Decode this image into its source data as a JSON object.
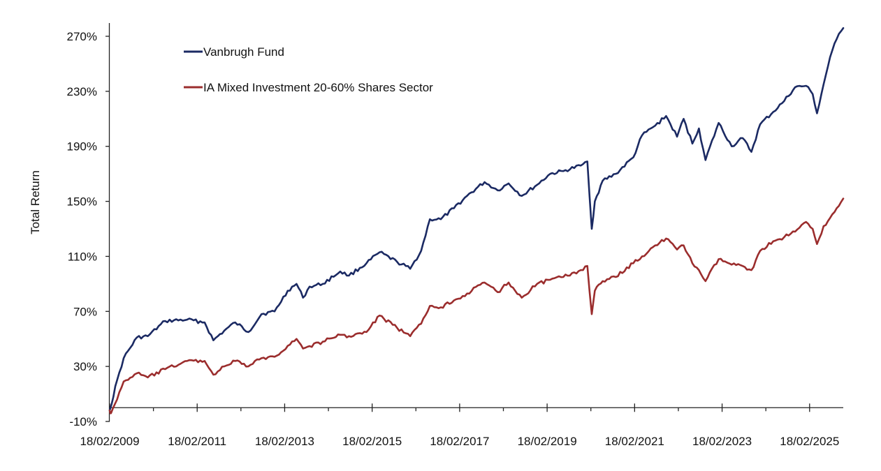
{
  "chart_data": {
    "type": "line",
    "title": "",
    "xlabel": "",
    "ylabel": "Total Return",
    "ylim": [
      -10,
      280
    ],
    "y_ticks": [
      -10,
      30,
      70,
      110,
      150,
      190,
      230,
      270
    ],
    "y_tick_labels": [
      "-10%",
      "30%",
      "70%",
      "110%",
      "150%",
      "190%",
      "230%",
      "270%"
    ],
    "x_range": [
      2009.13,
      2025.9
    ],
    "x_major_ticks": [
      2009.13,
      2011.13,
      2013.13,
      2015.13,
      2017.13,
      2019.13,
      2021.13,
      2023.13,
      2025.13
    ],
    "x_minor_ticks": [
      2010.13,
      2012.13,
      2014.13,
      2016.13,
      2018.13,
      2020.13,
      2022.13,
      2024.13
    ],
    "x_tick_labels": [
      "18/02/2009",
      "18/02/2011",
      "18/02/2013",
      "18/02/2015",
      "18/02/2017",
      "18/02/2019",
      "18/02/2021",
      "18/02/2023",
      "18/02/2025"
    ],
    "x_axis_crosses_at": 0,
    "grid": false,
    "legend_position": "top-left",
    "series": [
      {
        "name": "Vanbrugh Fund",
        "color": "#1b2a63",
        "x": [
          2009.13,
          2009.3,
          2009.45,
          2009.75,
          2010.0,
          2010.4,
          2010.9,
          2011.3,
          2011.5,
          2011.75,
          2012.0,
          2012.3,
          2012.6,
          2012.9,
          2013.2,
          2013.4,
          2013.55,
          2013.7,
          2014.0,
          2014.4,
          2014.6,
          2015.0,
          2015.3,
          2015.7,
          2016.0,
          2016.25,
          2016.45,
          2016.7,
          2017.0,
          2017.3,
          2017.7,
          2018.0,
          2018.25,
          2018.55,
          2018.9,
          2019.2,
          2019.5,
          2019.9,
          2020.05,
          2020.15,
          2020.22,
          2020.4,
          2020.7,
          2021.1,
          2021.3,
          2021.6,
          2021.85,
          2022.1,
          2022.25,
          2022.45,
          2022.6,
          2022.75,
          2023.05,
          2023.35,
          2023.6,
          2023.8,
          2024.0,
          2024.3,
          2024.55,
          2024.8,
          2025.05,
          2025.2,
          2025.3,
          2025.45,
          2025.6,
          2025.75,
          2025.9
        ],
        "values": [
          -2,
          20,
          36,
          51,
          52,
          63,
          64,
          62,
          49,
          56,
          62,
          55,
          68,
          70,
          85,
          90,
          80,
          88,
          90,
          99,
          96,
          105,
          113,
          106,
          101,
          114,
          137,
          137,
          145,
          154,
          164,
          158,
          163,
          154,
          162,
          170,
          172,
          176,
          179,
          130,
          150,
          165,
          170,
          182,
          198,
          205,
          212,
          197,
          210,
          192,
          203,
          180,
          207,
          190,
          196,
          186,
          206,
          215,
          223,
          233,
          234,
          228,
          214,
          235,
          255,
          268,
          276
        ]
      },
      {
        "name": "IA Mixed Investment 20-60% Shares Sector",
        "color": "#9b2d2d",
        "x": [
          2009.13,
          2009.16,
          2009.3,
          2009.45,
          2009.75,
          2010.0,
          2010.4,
          2010.9,
          2011.3,
          2011.5,
          2011.75,
          2012.0,
          2012.3,
          2012.6,
          2012.9,
          2013.2,
          2013.4,
          2013.55,
          2014.0,
          2014.4,
          2014.6,
          2015.0,
          2015.3,
          2015.7,
          2016.0,
          2016.25,
          2016.45,
          2016.7,
          2017.0,
          2017.3,
          2017.7,
          2018.0,
          2018.25,
          2018.55,
          2018.9,
          2019.2,
          2019.5,
          2019.9,
          2020.05,
          2020.15,
          2020.22,
          2020.4,
          2020.7,
          2021.1,
          2021.3,
          2021.6,
          2021.85,
          2022.1,
          2022.25,
          2022.45,
          2022.6,
          2022.75,
          2023.05,
          2023.35,
          2023.6,
          2023.8,
          2024.0,
          2024.3,
          2024.55,
          2024.8,
          2025.05,
          2025.2,
          2025.3,
          2025.45,
          2025.6,
          2025.75,
          2025.9
        ],
        "values": [
          -2,
          -4,
          6,
          19,
          25,
          22,
          28,
          34,
          34,
          24,
          30,
          34,
          30,
          36,
          37,
          45,
          50,
          43,
          48,
          53,
          52,
          55,
          67,
          58,
          52,
          61,
          74,
          73,
          78,
          83,
          91,
          84,
          91,
          80,
          90,
          93,
          95,
          100,
          103,
          68,
          85,
          92,
          95,
          105,
          110,
          118,
          123,
          115,
          118,
          105,
          100,
          92,
          108,
          104,
          103,
          100,
          114,
          121,
          124,
          128,
          135,
          130,
          119,
          132,
          138,
          145,
          152
        ]
      }
    ]
  }
}
